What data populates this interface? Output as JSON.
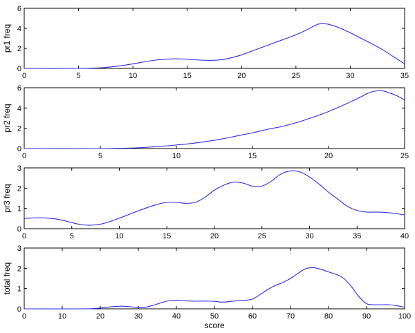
{
  "chart_data": [
    {
      "type": "line",
      "ylabel": "pr1 freq",
      "xlabel": "",
      "xlim": [
        0,
        35
      ],
      "ylim": [
        0,
        6
      ],
      "xticks": [
        0,
        5,
        10,
        15,
        20,
        25,
        30,
        35
      ],
      "yticks": [
        0,
        2,
        4,
        6
      ],
      "color": "#2a2ae6",
      "series": [
        {
          "x": [
            0,
            5,
            6,
            7,
            8,
            9,
            10,
            11,
            12,
            13,
            14,
            15,
            16,
            17,
            18,
            19,
            20,
            21,
            22,
            23,
            24,
            25,
            26,
            27,
            27.5,
            28,
            29,
            30,
            31,
            32,
            33,
            34,
            35
          ],
          "y": [
            0,
            0,
            0.02,
            0.06,
            0.15,
            0.28,
            0.45,
            0.65,
            0.82,
            0.92,
            0.95,
            0.92,
            0.84,
            0.8,
            0.85,
            1.05,
            1.35,
            1.75,
            2.15,
            2.55,
            2.95,
            3.35,
            3.85,
            4.4,
            4.45,
            4.4,
            4.05,
            3.55,
            3.0,
            2.45,
            1.85,
            1.15,
            0.45
          ]
        }
      ]
    },
    {
      "type": "line",
      "ylabel": "pr2 freq",
      "xlabel": "",
      "xlim": [
        0,
        25
      ],
      "ylim": [
        0,
        6
      ],
      "xticks": [
        0,
        5,
        10,
        15,
        20,
        25
      ],
      "yticks": [
        0,
        2,
        4,
        6
      ],
      "color": "#2a2ae6",
      "series": [
        {
          "x": [
            0,
            5,
            6,
            7,
            8,
            9,
            10,
            11,
            12,
            13,
            14,
            15,
            16,
            17,
            18,
            19,
            20,
            21,
            22,
            22.5,
            23,
            23.5,
            24,
            24.5,
            25
          ],
          "y": [
            0,
            0,
            0.02,
            0.05,
            0.12,
            0.22,
            0.35,
            0.5,
            0.7,
            0.95,
            1.25,
            1.55,
            1.9,
            2.2,
            2.6,
            3.1,
            3.65,
            4.3,
            5.0,
            5.4,
            5.65,
            5.7,
            5.5,
            5.2,
            4.8
          ]
        }
      ]
    },
    {
      "type": "line",
      "ylabel": "pr3 freq",
      "xlabel": "",
      "xlim": [
        0,
        40
      ],
      "ylim": [
        0,
        3
      ],
      "xticks": [
        0,
        5,
        10,
        15,
        20,
        25,
        30,
        35,
        40
      ],
      "yticks": [
        0,
        1,
        2,
        3
      ],
      "color": "#2a2ae6",
      "series": [
        {
          "x": [
            0,
            1,
            2,
            3,
            4,
            5,
            6,
            7,
            8,
            9,
            10,
            11,
            12,
            13,
            14,
            15,
            16,
            17,
            18,
            19,
            20,
            21,
            22,
            23,
            24,
            25,
            26,
            27,
            28,
            29,
            30,
            31,
            32,
            33,
            34,
            35,
            36,
            37,
            38,
            39,
            40
          ],
          "y": [
            0.5,
            0.53,
            0.53,
            0.5,
            0.42,
            0.3,
            0.2,
            0.17,
            0.22,
            0.35,
            0.52,
            0.7,
            0.88,
            1.05,
            1.2,
            1.3,
            1.3,
            1.25,
            1.3,
            1.55,
            1.9,
            2.15,
            2.3,
            2.25,
            2.1,
            2.1,
            2.35,
            2.7,
            2.85,
            2.8,
            2.55,
            2.2,
            1.8,
            1.45,
            1.1,
            0.9,
            0.82,
            0.82,
            0.8,
            0.75,
            0.68
          ]
        }
      ]
    },
    {
      "type": "line",
      "ylabel": "total freq",
      "xlabel": "score",
      "xlim": [
        0,
        100
      ],
      "ylim": [
        0,
        3
      ],
      "xticks": [
        0,
        10,
        20,
        30,
        40,
        50,
        60,
        70,
        80,
        90,
        100
      ],
      "yticks": [
        0,
        1,
        2,
        3
      ],
      "color": "#2a2ae6",
      "series": [
        {
          "x": [
            0,
            15,
            18,
            20,
            22,
            24,
            26,
            28,
            30,
            32,
            34,
            36,
            38,
            40,
            42,
            44,
            46,
            48,
            50,
            52,
            54,
            56,
            58,
            60,
            62,
            64,
            66,
            68,
            70,
            72,
            74,
            76,
            78,
            80,
            82,
            84,
            86,
            88,
            90,
            92,
            94,
            96,
            98,
            100
          ],
          "y": [
            0,
            0,
            0.01,
            0.04,
            0.08,
            0.12,
            0.13,
            0.1,
            0.06,
            0.08,
            0.18,
            0.3,
            0.4,
            0.43,
            0.4,
            0.38,
            0.38,
            0.38,
            0.37,
            0.33,
            0.36,
            0.4,
            0.42,
            0.48,
            0.7,
            0.95,
            1.15,
            1.3,
            1.5,
            1.75,
            1.98,
            2.03,
            1.95,
            1.82,
            1.7,
            1.5,
            1.1,
            0.6,
            0.25,
            0.2,
            0.2,
            0.2,
            0.15,
            0.08
          ]
        }
      ]
    }
  ]
}
